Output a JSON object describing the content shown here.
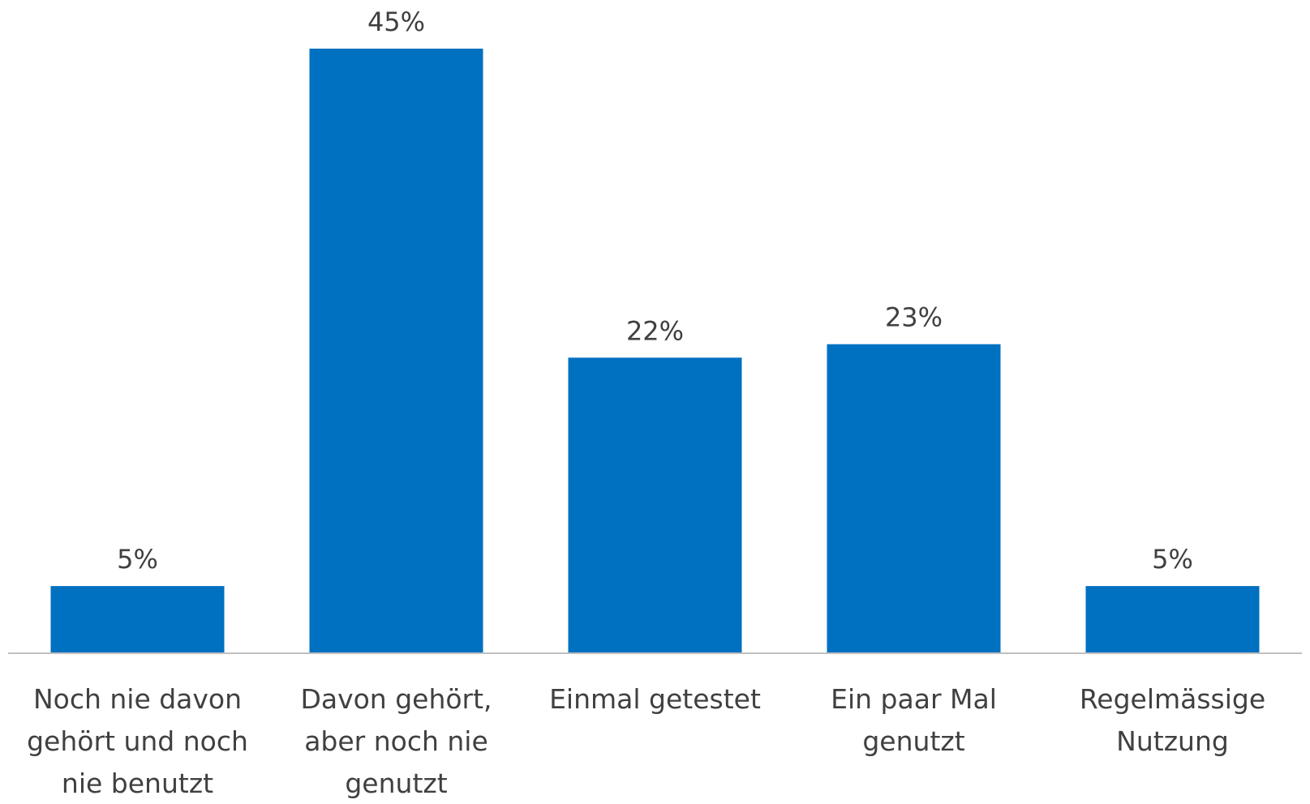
{
  "chart_data": {
    "type": "bar",
    "categories": [
      [
        "Noch nie davon",
        "gehört und noch",
        "nie benutzt"
      ],
      [
        "Davon gehört,",
        "aber noch nie",
        "genutzt"
      ],
      [
        "Einmal getestet"
      ],
      [
        "Ein paar Mal",
        "genutzt"
      ],
      [
        "Regelmässige",
        "Nutzung"
      ]
    ],
    "values": [
      5,
      45,
      22,
      23,
      5
    ],
    "data_labels": [
      "5%",
      "45%",
      "22%",
      "23%",
      "5%"
    ],
    "ylim": [
      0,
      45
    ],
    "grid": false,
    "legend": "none",
    "colors": {
      "bar": "#0070C0",
      "axis": "#BFBFBF",
      "text": "#404040"
    }
  }
}
